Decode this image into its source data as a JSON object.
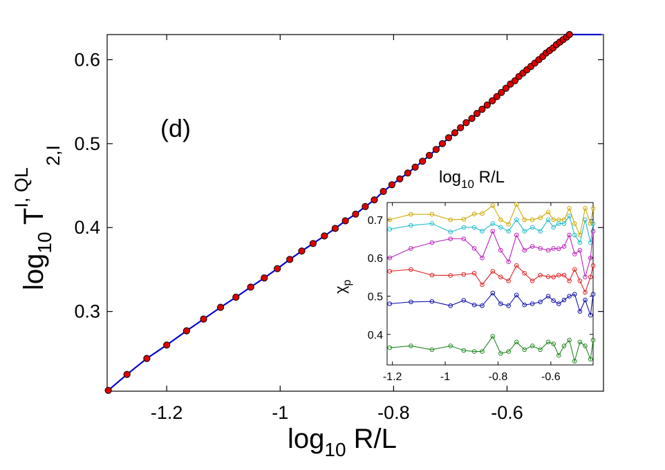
{
  "chart_data": [
    {
      "type": "line",
      "panel_label": "(d)",
      "xlabel": {
        "base": "log",
        "sub": "10",
        "rest": " R/L"
      },
      "ylabel": {
        "base": "log",
        "sub": "10",
        "rest": " T",
        "sup": "I, QL",
        "sub2": "2,I"
      },
      "xlim": [
        -1.305,
        -0.43
      ],
      "ylim": [
        0.205,
        0.63
      ],
      "xticks": [
        -1.2,
        -1.0,
        -0.8,
        -0.6
      ],
      "xtick_labels": [
        "-1.2",
        "-1",
        "-0.8",
        "-0.6"
      ],
      "yticks": [
        0.3,
        0.4,
        0.5,
        0.6
      ],
      "ytick_labels": [
        "0.3",
        "0.4",
        "0.5",
        "0.6"
      ],
      "grid": false,
      "series": [
        {
          "style": "line+markers",
          "line_color": "#0000cc",
          "marker_color": "#dd0000",
          "x": [
            -1.303,
            -1.27,
            -1.235,
            -1.2,
            -1.165,
            -1.135,
            -1.105,
            -1.078,
            -1.052,
            -1.028,
            -1.005,
            -0.983,
            -0.962,
            -0.942,
            -0.922,
            -0.903,
            -0.885,
            -0.867,
            -0.85,
            -0.834,
            -0.818,
            -0.803,
            -0.789,
            -0.775,
            -0.762,
            -0.749,
            -0.737,
            -0.725,
            -0.714,
            -0.703,
            -0.692,
            -0.682,
            -0.672,
            -0.662,
            -0.653,
            -0.644,
            -0.635,
            -0.626,
            -0.618,
            -0.61,
            -0.602,
            -0.594,
            -0.586,
            -0.579,
            -0.572,
            -0.565,
            -0.558,
            -0.551,
            -0.544,
            -0.537,
            -0.531,
            -0.525,
            -0.519,
            -0.513,
            -0.507,
            -0.501,
            -0.495,
            -0.49,
            -0.484,
            -0.479,
            -0.473,
            -0.468,
            -0.463,
            -0.458,
            -0.453,
            -0.448,
            -0.443,
            -0.438,
            -0.434
          ],
          "y": [
            0.206,
            0.225,
            0.244,
            0.26,
            0.277,
            0.291,
            0.305,
            0.317,
            0.329,
            0.34,
            0.351,
            0.362,
            0.372,
            0.381,
            0.39,
            0.399,
            0.408,
            0.416,
            0.425,
            0.433,
            0.443,
            0.451,
            0.458,
            0.465,
            0.472,
            0.479,
            0.486,
            0.493,
            0.5,
            0.507,
            0.513,
            0.519,
            0.525,
            0.53,
            0.536,
            0.541,
            0.546,
            0.551,
            0.556,
            0.561,
            0.566,
            0.571,
            0.575,
            0.58,
            0.584,
            0.588,
            0.592,
            0.596,
            0.6,
            0.604,
            0.608,
            0.611,
            0.614,
            0.618,
            0.621,
            0.624,
            0.627,
            0.63,
            0.633,
            0.636,
            0.639,
            0.642,
            0.645,
            0.648,
            0.651,
            0.654,
            0.657,
            0.66,
            0.663
          ]
        }
      ]
    },
    {
      "type": "line",
      "inset": true,
      "title": {
        "base": "log",
        "sub": "10",
        "rest": " R/L"
      },
      "ylabel": {
        "base": "χ",
        "sub": "p"
      },
      "xlim": [
        -1.22,
        -0.44
      ],
      "ylim": [
        0.32,
        0.745
      ],
      "xticks": [
        -1.2,
        -1.0,
        -0.8,
        -0.6
      ],
      "xtick_labels": [
        "-1.2",
        "-1",
        "-0.8",
        "-0.6"
      ],
      "yticks": [
        0.4,
        0.5,
        0.6,
        0.7
      ],
      "ytick_labels": [
        "0.4",
        "0.5",
        "0.6",
        "0.7"
      ],
      "grid": false,
      "x": [
        -1.21,
        -1.13,
        -1.05,
        -0.98,
        -0.93,
        -0.89,
        -0.86,
        -0.82,
        -0.79,
        -0.76,
        -0.73,
        -0.7,
        -0.67,
        -0.64,
        -0.61,
        -0.59,
        -0.57,
        -0.55,
        -0.53,
        -0.51,
        -0.49,
        -0.47,
        -0.45,
        -0.44
      ],
      "series": [
        {
          "color": "#ccaa00",
          "values": [
            0.7,
            0.714,
            0.714,
            0.7,
            0.701,
            0.715,
            0.716,
            0.737,
            0.7,
            0.688,
            0.74,
            0.7,
            0.7,
            0.705,
            0.72,
            0.7,
            0.7,
            0.7,
            0.73,
            0.69,
            0.66,
            0.73,
            0.69,
            0.73
          ]
        },
        {
          "color": "#22bbcc",
          "values": [
            0.675,
            0.685,
            0.69,
            0.668,
            0.68,
            0.68,
            0.67,
            0.69,
            0.68,
            0.67,
            0.7,
            0.67,
            0.68,
            0.67,
            0.7,
            0.68,
            0.69,
            0.69,
            0.71,
            0.66,
            0.64,
            0.7,
            0.64,
            0.69
          ]
        },
        {
          "color": "#bb22bb",
          "values": [
            0.6,
            0.625,
            0.64,
            0.65,
            0.65,
            0.625,
            0.6,
            0.67,
            0.62,
            0.59,
            0.66,
            0.62,
            0.63,
            0.625,
            0.62,
            0.625,
            0.624,
            0.63,
            0.66,
            0.61,
            0.62,
            0.55,
            0.6,
            0.67
          ]
        },
        {
          "color": "#dd2222",
          "values": [
            0.565,
            0.57,
            0.555,
            0.554,
            0.557,
            0.56,
            0.53,
            0.565,
            0.55,
            0.54,
            0.58,
            0.56,
            0.54,
            0.555,
            0.551,
            0.55,
            0.555,
            0.555,
            0.54,
            0.57,
            0.54,
            0.51,
            0.55,
            0.58
          ]
        },
        {
          "color": "#1111aa",
          "values": [
            0.48,
            0.485,
            0.486,
            0.475,
            0.489,
            0.477,
            0.475,
            0.508,
            0.48,
            0.475,
            0.503,
            0.477,
            0.48,
            0.485,
            0.5,
            0.488,
            0.48,
            0.49,
            0.5,
            0.505,
            0.46,
            0.49,
            0.45,
            0.505
          ]
        },
        {
          "color": "#228822",
          "values": [
            0.365,
            0.37,
            0.36,
            0.37,
            0.358,
            0.355,
            0.355,
            0.395,
            0.35,
            0.355,
            0.38,
            0.36,
            0.37,
            0.36,
            0.38,
            0.375,
            0.345,
            0.37,
            0.385,
            0.33,
            0.38,
            0.37,
            0.335,
            0.385
          ]
        }
      ]
    }
  ]
}
